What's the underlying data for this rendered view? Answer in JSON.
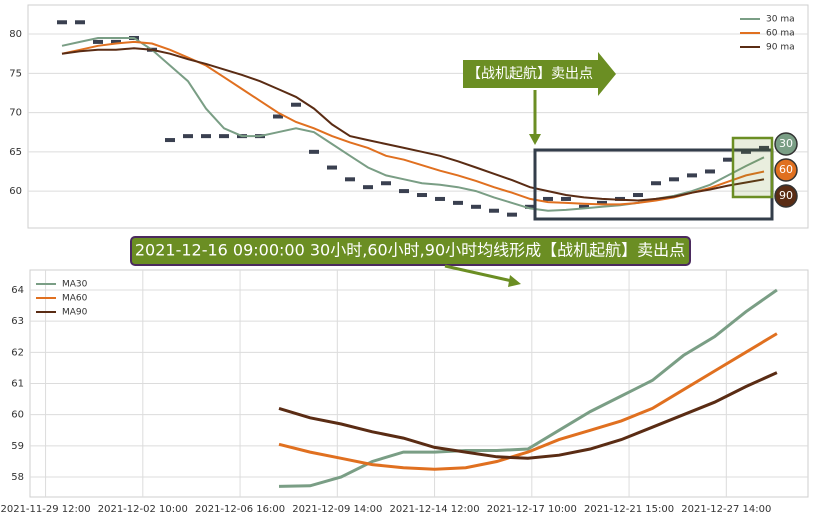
{
  "chart_data": [
    {
      "type": "line",
      "legend": "upper right",
      "grid": true,
      "ylim": [
        55.3,
        83.7
      ],
      "yticks": [
        60,
        65,
        70,
        75,
        80
      ],
      "price_color": "#3a4050",
      "values": [
        81.5,
        81.5,
        79,
        79,
        79.5,
        78,
        66.5,
        67,
        67,
        67,
        67,
        67,
        69.5,
        71,
        65,
        63,
        61.5,
        60.5,
        61,
        60,
        59.5,
        59,
        58.5,
        58,
        57.5,
        57,
        58,
        59,
        59,
        58,
        58.5,
        59,
        59.5,
        61,
        61.5,
        62,
        62.5,
        64,
        65,
        65.5
      ],
      "series": [
        {
          "name": "30 ma",
          "color": "#7a9e85",
          "values": [
            78.5,
            79,
            79.5,
            79.5,
            79.5,
            78,
            76,
            74,
            70.5,
            68,
            67,
            67,
            67.5,
            68,
            67.5,
            66,
            64.5,
            63,
            62,
            61.5,
            61,
            60.8,
            60.5,
            60,
            59.2,
            58.5,
            57.8,
            57.5,
            57.6,
            57.8,
            58,
            58.2,
            58.5,
            59,
            59.4,
            60,
            60.8,
            62,
            63.2,
            64.3
          ]
        },
        {
          "name": "60 ma",
          "color": "#e07020",
          "values": [
            77.5,
            78,
            78.5,
            78.8,
            79,
            78.8,
            78,
            77,
            76,
            74.5,
            73,
            71.5,
            70,
            68.8,
            68,
            67,
            66.2,
            65.5,
            64.5,
            64,
            63.3,
            62.6,
            62,
            61.3,
            60.5,
            59.8,
            59,
            58.6,
            58.5,
            58.4,
            58.3,
            58.3,
            58.5,
            58.8,
            59.2,
            59.8,
            60.4,
            61.2,
            62,
            62.5
          ]
        },
        {
          "name": "90 ma",
          "color": "#5a2c14",
          "values": [
            77.5,
            77.8,
            78,
            78,
            78.2,
            78,
            77.5,
            76.8,
            76.2,
            75.5,
            74.8,
            74,
            73,
            72,
            70.5,
            68.5,
            67,
            66.5,
            66,
            65.5,
            65,
            64.5,
            63.8,
            63,
            62.2,
            61.4,
            60.5,
            60,
            59.5,
            59.2,
            59,
            58.9,
            58.8,
            59,
            59.3,
            59.8,
            60.2,
            60.7,
            61.1,
            61.5
          ]
        }
      ],
      "annotations": [
        "【战机起航】卖出点",
        "30",
        "60",
        "90",
        "2021-12-16 09:00:00 30小时,60小时,90小时均线形成【战机起航】卖出点"
      ]
    },
    {
      "type": "line",
      "legend": "upper left",
      "grid": true,
      "xlim": [
        0,
        100
      ],
      "xticks": [
        {
          "value": 2,
          "label": "2021-11-29 12:00"
        },
        {
          "value": 14.5,
          "label": "2021-12-02 10:00"
        },
        {
          "value": 27,
          "label": "2021-12-06 16:00"
        },
        {
          "value": 39.5,
          "label": "2021-12-09 14:00"
        },
        {
          "value": 52,
          "label": "2021-12-14 12:00"
        },
        {
          "value": 64.5,
          "label": "2021-12-17 10:00"
        },
        {
          "value": 77,
          "label": "2021-12-21 15:00"
        },
        {
          "value": 89.5,
          "label": "2021-12-27 14:00"
        }
      ],
      "ylim": [
        57.36,
        64.64
      ],
      "yticks": [
        58,
        59,
        60,
        61,
        62,
        63,
        64
      ],
      "x": [
        32,
        36,
        40,
        44,
        48,
        52,
        56,
        60,
        64,
        68,
        72,
        76,
        80,
        84,
        88,
        92,
        96
      ],
      "series": [
        {
          "name": "MA30",
          "color": "#7a9e85",
          "values": [
            57.7,
            57.72,
            58.0,
            58.5,
            58.8,
            58.8,
            58.85,
            58.85,
            58.9,
            59.5,
            60.1,
            60.6,
            61.1,
            61.9,
            62.5,
            63.3,
            64.0
          ]
        },
        {
          "name": "MA60",
          "color": "#e07020",
          "values": [
            59.05,
            58.8,
            58.6,
            58.4,
            58.3,
            58.25,
            58.3,
            58.5,
            58.8,
            59.2,
            59.5,
            59.8,
            60.2,
            60.8,
            61.4,
            62.0,
            62.6
          ]
        },
        {
          "name": "MA90",
          "color": "#5a2c14",
          "values": [
            60.2,
            59.9,
            59.7,
            59.45,
            59.25,
            58.95,
            58.8,
            58.65,
            58.6,
            58.7,
            58.9,
            59.2,
            59.6,
            60.0,
            60.4,
            60.9,
            61.35
          ]
        }
      ]
    }
  ]
}
